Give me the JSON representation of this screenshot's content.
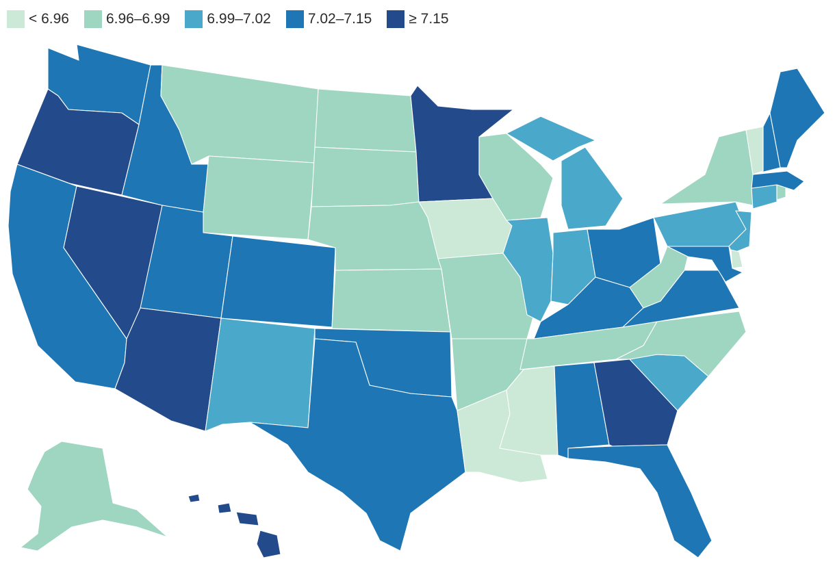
{
  "legend": [
    {
      "label": "< 6.96",
      "color": "#cce8d6"
    },
    {
      "label": "6.96–6.99",
      "color": "#9fd6c2"
    },
    {
      "label": "6.99–7.02",
      "color": "#4aa8cb"
    },
    {
      "label": "7.02–7.15",
      "color": "#1e77b4"
    },
    {
      "label": "≥ 7.15",
      "color": "#234b8c"
    }
  ],
  "states": {
    "WA": 3,
    "OR": 4,
    "CA": 3,
    "NV": 4,
    "ID": 3,
    "MT": 1,
    "WY": 1,
    "UT": 3,
    "AZ": 4,
    "CO": 3,
    "NM": 2,
    "ND": 1,
    "SD": 1,
    "NE": 1,
    "KS": 1,
    "OK": 3,
    "TX": 3,
    "MN": 4,
    "IA": 0,
    "MO": 1,
    "AR": 1,
    "LA": 0,
    "WI": 1,
    "IL": 2,
    "MI": 2,
    "IN": 2,
    "OH": 3,
    "KY": 3,
    "TN": 1,
    "MS": 0,
    "AL": 3,
    "GA": 4,
    "FL": 3,
    "SC": 2,
    "NC": 1,
    "VA": 3,
    "WV": 1,
    "PA": 2,
    "NY": 1,
    "VT": 0,
    "NH": 3,
    "ME": 3,
    "MA": 3,
    "CT": 2,
    "RI": 1,
    "NJ": 2,
    "DE": 0,
    "MD": 3,
    "AK": 1,
    "HI": 4
  }
}
